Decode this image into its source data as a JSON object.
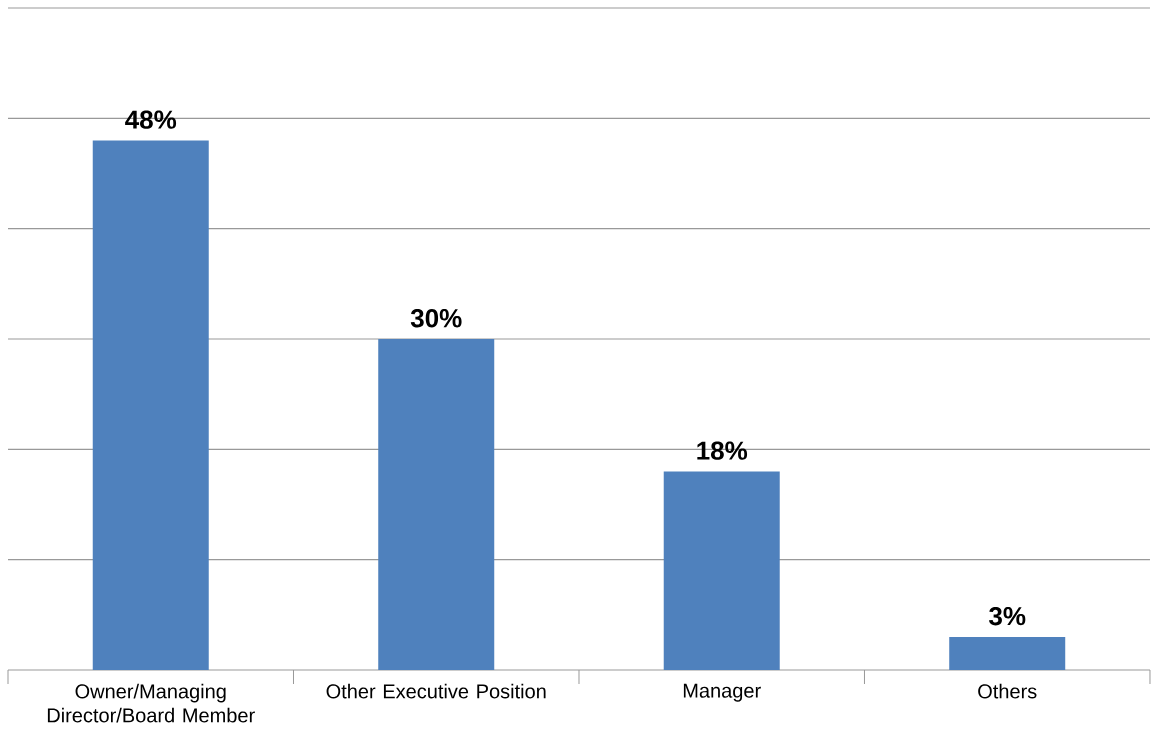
{
  "chart_data": {
    "type": "bar",
    "categories": [
      "Owner/Managing Director/Board Member",
      "Other Executive Position",
      "Manager",
      "Others"
    ],
    "values": [
      48,
      30,
      18,
      3
    ],
    "value_labels": [
      "48%",
      "30%",
      "18%",
      "3%"
    ],
    "color": "#4f81bd",
    "ylim": [
      0,
      60
    ],
    "yticks": [
      {
        "value": 0,
        "label": null
      },
      {
        "value": 10,
        "label": null
      },
      {
        "value": 20,
        "label": null
      },
      {
        "value": 30,
        "label": null
      },
      {
        "value": 40,
        "label": null
      },
      {
        "value": 50,
        "label": null
      },
      {
        "value": 60,
        "label": null
      }
    ],
    "grid": "y",
    "tick_labels": "x"
  }
}
